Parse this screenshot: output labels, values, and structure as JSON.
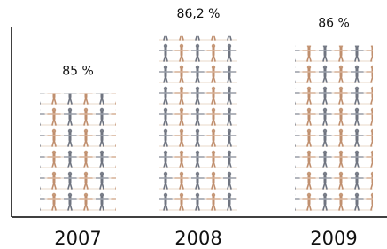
{
  "chart_data": {
    "type": "bar",
    "categories": [
      "2007",
      "2008",
      "2009"
    ],
    "values": [
      85,
      86.2,
      86
    ],
    "value_labels": [
      "85 %",
      "86,2 %",
      "86 %"
    ],
    "ylim": [
      82.5,
      86.4
    ]
  }
}
